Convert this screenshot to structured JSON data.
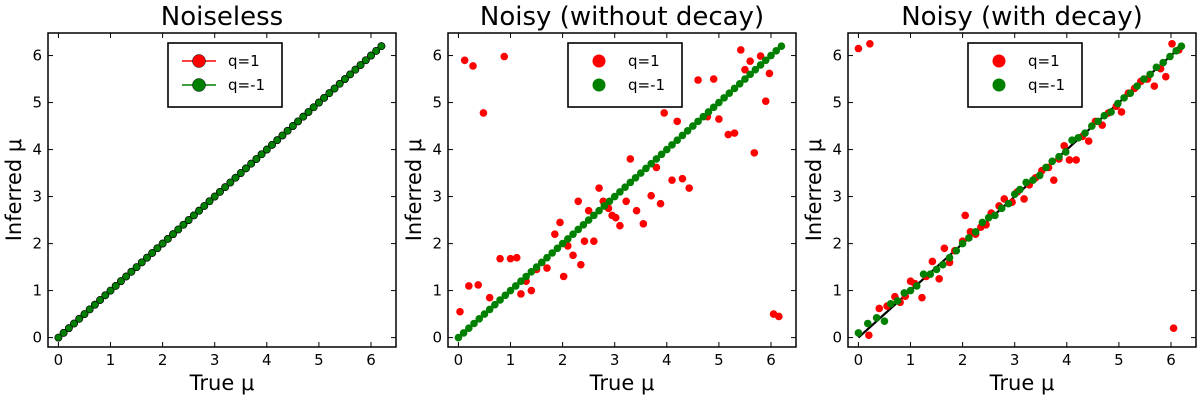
{
  "chart_data": [
    {
      "type": "scatter",
      "title": "Noiseless",
      "xlabel": "True μ",
      "ylabel": "Inferred μ",
      "xlim": [
        -0.2,
        6.48
      ],
      "ylim": [
        -0.2,
        6.48
      ],
      "xticks": [
        "0",
        "1",
        "2",
        "3",
        "4",
        "5",
        "6"
      ],
      "yticks": [
        "0",
        "1",
        "2",
        "3",
        "4",
        "5",
        "6"
      ],
      "legend_position": "top-center",
      "marker_style": "line-with-markers",
      "series": [
        {
          "name": "q=1",
          "color": "#ff0000",
          "x": [
            0.0,
            0.1,
            0.2,
            0.3,
            0.4,
            0.5,
            0.6,
            0.7,
            0.8,
            0.9,
            1.0,
            1.1,
            1.2,
            1.3,
            1.4,
            1.5,
            1.6,
            1.7,
            1.8,
            1.9,
            2.0,
            2.1,
            2.2,
            2.3,
            2.4,
            2.5,
            2.6,
            2.7,
            2.8,
            2.9,
            3.0,
            3.1,
            3.2,
            3.3,
            3.4,
            3.5,
            3.6,
            3.7,
            3.8,
            3.9,
            4.0,
            4.1,
            4.2,
            4.3,
            4.4,
            4.5,
            4.6,
            4.7,
            4.8,
            4.9,
            5.0,
            5.1,
            5.2,
            5.3,
            5.4,
            5.5,
            5.6,
            5.7,
            5.8,
            5.9,
            6.0,
            6.1,
            6.2
          ],
          "y": [
            0.0,
            0.1,
            0.2,
            0.3,
            0.4,
            0.5,
            0.6,
            0.7,
            0.8,
            0.9,
            1.0,
            1.1,
            1.2,
            1.3,
            1.4,
            1.5,
            1.6,
            1.7,
            1.8,
            1.9,
            2.0,
            2.1,
            2.2,
            2.3,
            2.4,
            2.5,
            2.6,
            2.7,
            2.8,
            2.9,
            3.0,
            3.1,
            3.2,
            3.3,
            3.4,
            3.5,
            3.6,
            3.7,
            3.8,
            3.9,
            4.0,
            4.1,
            4.2,
            4.3,
            4.4,
            4.5,
            4.6,
            4.7,
            4.8,
            4.9,
            5.0,
            5.1,
            5.2,
            5.3,
            5.4,
            5.5,
            5.6,
            5.7,
            5.8,
            5.9,
            6.0,
            6.1,
            6.2
          ]
        },
        {
          "name": "q=-1",
          "color": "#008000",
          "x": [
            0.0,
            0.1,
            0.2,
            0.3,
            0.4,
            0.5,
            0.6,
            0.7,
            0.8,
            0.9,
            1.0,
            1.1,
            1.2,
            1.3,
            1.4,
            1.5,
            1.6,
            1.7,
            1.8,
            1.9,
            2.0,
            2.1,
            2.2,
            2.3,
            2.4,
            2.5,
            2.6,
            2.7,
            2.8,
            2.9,
            3.0,
            3.1,
            3.2,
            3.3,
            3.4,
            3.5,
            3.6,
            3.7,
            3.8,
            3.9,
            4.0,
            4.1,
            4.2,
            4.3,
            4.4,
            4.5,
            4.6,
            4.7,
            4.8,
            4.9,
            5.0,
            5.1,
            5.2,
            5.3,
            5.4,
            5.5,
            5.6,
            5.7,
            5.8,
            5.9,
            6.0,
            6.1,
            6.2
          ],
          "y": [
            0.0,
            0.1,
            0.2,
            0.3,
            0.4,
            0.5,
            0.6,
            0.7,
            0.8,
            0.9,
            1.0,
            1.1,
            1.2,
            1.3,
            1.4,
            1.5,
            1.6,
            1.7,
            1.8,
            1.9,
            2.0,
            2.1,
            2.2,
            2.3,
            2.4,
            2.5,
            2.6,
            2.7,
            2.8,
            2.9,
            3.0,
            3.1,
            3.2,
            3.3,
            3.4,
            3.5,
            3.6,
            3.7,
            3.8,
            3.9,
            4.0,
            4.1,
            4.2,
            4.3,
            4.4,
            4.5,
            4.6,
            4.7,
            4.8,
            4.9,
            5.0,
            5.1,
            5.2,
            5.3,
            5.4,
            5.5,
            5.6,
            5.7,
            5.8,
            5.9,
            6.0,
            6.1,
            6.2
          ]
        }
      ],
      "reference_line": {
        "x": [
          0,
          6.2
        ],
        "y": [
          0,
          6.2
        ],
        "color": "#000000"
      }
    },
    {
      "type": "scatter",
      "title": "Noisy (without decay)",
      "xlabel": "True μ",
      "ylabel": "Inferred μ",
      "xlim": [
        -0.2,
        6.48
      ],
      "ylim": [
        -0.2,
        6.48
      ],
      "xticks": [
        "0",
        "1",
        "2",
        "3",
        "4",
        "5",
        "6"
      ],
      "yticks": [
        "0",
        "1",
        "2",
        "3",
        "4",
        "5",
        "6"
      ],
      "legend_position": "top-center",
      "marker_style": "markers",
      "series": [
        {
          "name": "q=1",
          "color": "#ff0000",
          "x": [
            0.03,
            0.12,
            0.2,
            0.28,
            0.38,
            0.48,
            0.6,
            0.8,
            0.88,
            1.0,
            1.12,
            1.2,
            1.3,
            1.4,
            1.5,
            1.6,
            1.7,
            1.85,
            1.95,
            2.02,
            2.1,
            2.2,
            2.3,
            2.35,
            2.42,
            2.5,
            2.6,
            2.7,
            2.78,
            2.88,
            2.95,
            3.02,
            3.1,
            3.22,
            3.3,
            3.42,
            3.55,
            3.7,
            3.8,
            3.88,
            3.95,
            4.1,
            4.2,
            4.3,
            4.43,
            4.6,
            4.78,
            4.9,
            5.0,
            5.18,
            5.3,
            5.42,
            5.5,
            5.6,
            5.68,
            5.8,
            5.9,
            5.97,
            6.05,
            6.15
          ],
          "y": [
            0.55,
            5.9,
            1.1,
            5.78,
            1.12,
            4.78,
            0.85,
            1.68,
            5.98,
            1.68,
            1.7,
            0.93,
            1.2,
            1.0,
            1.45,
            1.6,
            1.48,
            2.2,
            2.45,
            1.3,
            1.95,
            1.75,
            2.9,
            1.55,
            2.05,
            2.7,
            2.05,
            3.18,
            2.9,
            2.75,
            2.6,
            2.55,
            2.38,
            2.9,
            3.8,
            2.7,
            2.42,
            3.02,
            3.62,
            2.85,
            4.78,
            3.35,
            4.6,
            3.38,
            3.18,
            5.48,
            4.7,
            5.5,
            4.65,
            4.32,
            4.35,
            6.12,
            5.7,
            5.88,
            3.93,
            5.99,
            5.03,
            5.62,
            0.5,
            0.45
          ]
        },
        {
          "name": "q=-1",
          "color": "#008000",
          "x": [
            0.0,
            0.1,
            0.2,
            0.3,
            0.4,
            0.5,
            0.6,
            0.7,
            0.8,
            0.9,
            1.0,
            1.1,
            1.2,
            1.3,
            1.4,
            1.5,
            1.6,
            1.7,
            1.8,
            1.9,
            2.0,
            2.1,
            2.2,
            2.3,
            2.4,
            2.5,
            2.6,
            2.7,
            2.8,
            2.9,
            3.0,
            3.1,
            3.2,
            3.3,
            3.4,
            3.5,
            3.6,
            3.7,
            3.8,
            3.9,
            4.0,
            4.1,
            4.2,
            4.3,
            4.4,
            4.5,
            4.6,
            4.7,
            4.8,
            4.9,
            5.0,
            5.1,
            5.2,
            5.3,
            5.4,
            5.5,
            5.6,
            5.7,
            5.8,
            5.9,
            6.0,
            6.1,
            6.2
          ],
          "y": [
            0.0,
            0.1,
            0.2,
            0.3,
            0.4,
            0.5,
            0.6,
            0.7,
            0.8,
            0.9,
            1.0,
            1.1,
            1.2,
            1.3,
            1.4,
            1.5,
            1.6,
            1.7,
            1.8,
            1.9,
            2.0,
            2.1,
            2.2,
            2.3,
            2.4,
            2.5,
            2.6,
            2.7,
            2.8,
            2.9,
            3.0,
            3.1,
            3.2,
            3.3,
            3.4,
            3.5,
            3.6,
            3.7,
            3.8,
            3.9,
            4.0,
            4.1,
            4.2,
            4.3,
            4.4,
            4.5,
            4.6,
            4.7,
            4.8,
            4.9,
            5.0,
            5.1,
            5.2,
            5.3,
            5.4,
            5.5,
            5.6,
            5.7,
            5.8,
            5.9,
            6.0,
            6.1,
            6.2
          ]
        }
      ],
      "reference_line": {
        "x": [
          0,
          6.2
        ],
        "y": [
          0,
          6.2
        ],
        "color": "#000000"
      }
    },
    {
      "type": "scatter",
      "title": "Noisy (with decay)",
      "xlabel": "True μ",
      "ylabel": "Inferred μ",
      "xlim": [
        -0.2,
        6.48
      ],
      "ylim": [
        -0.2,
        6.48
      ],
      "xticks": [
        "0",
        "1",
        "2",
        "3",
        "4",
        "5",
        "6"
      ],
      "yticks": [
        "0",
        "1",
        "2",
        "3",
        "4",
        "5",
        "6"
      ],
      "legend_position": "top-center",
      "marker_style": "markers",
      "series": [
        {
          "name": "q=1",
          "color": "#ff0000",
          "x": [
            0.0,
            0.22,
            0.2,
            0.4,
            0.55,
            0.7,
            0.8,
            0.9,
            1.0,
            1.08,
            1.22,
            1.3,
            1.42,
            1.55,
            1.65,
            1.75,
            1.85,
            2.0,
            2.05,
            2.15,
            2.25,
            2.35,
            2.45,
            2.55,
            2.7,
            2.8,
            2.95,
            3.05,
            3.18,
            3.28,
            3.4,
            3.52,
            3.65,
            3.75,
            3.85,
            3.95,
            4.05,
            4.18,
            4.3,
            4.42,
            4.55,
            4.68,
            4.8,
            4.95,
            5.05,
            5.18,
            5.3,
            5.42,
            5.55,
            5.68,
            5.8,
            5.9,
            6.02,
            6.15,
            6.05
          ],
          "y": [
            6.15,
            6.25,
            0.05,
            0.62,
            0.67,
            0.87,
            0.75,
            0.88,
            1.2,
            1.15,
            0.85,
            1.3,
            1.62,
            1.25,
            1.9,
            1.6,
            1.85,
            2.05,
            2.6,
            2.25,
            2.2,
            2.35,
            2.4,
            2.65,
            2.8,
            2.95,
            2.88,
            3.1,
            2.95,
            3.25,
            3.4,
            3.55,
            3.62,
            3.35,
            3.8,
            4.08,
            3.78,
            3.78,
            4.28,
            4.18,
            4.6,
            4.52,
            4.78,
            4.92,
            4.8,
            5.2,
            5.3,
            5.45,
            5.5,
            5.35,
            5.72,
            5.55,
            6.25,
            6.12,
            0.2
          ]
        },
        {
          "name": "q=-1",
          "color": "#008000",
          "x": [
            0.0,
            0.18,
            0.35,
            0.5,
            0.62,
            0.75,
            0.88,
            1.0,
            1.12,
            1.25,
            1.38,
            1.5,
            1.62,
            1.75,
            1.88,
            2.0,
            2.12,
            2.25,
            2.38,
            2.5,
            2.62,
            2.75,
            2.88,
            3.0,
            3.1,
            3.22,
            3.35,
            3.48,
            3.6,
            3.72,
            3.85,
            3.98,
            4.1,
            4.22,
            4.35,
            4.48,
            4.6,
            4.72,
            4.85,
            4.98,
            5.1,
            5.22,
            5.35,
            5.48,
            5.6,
            5.72,
            5.85,
            5.98,
            6.1,
            6.2
          ],
          "y": [
            0.1,
            0.3,
            0.42,
            0.35,
            0.72,
            0.78,
            0.95,
            1.0,
            1.1,
            1.35,
            1.35,
            1.45,
            1.55,
            1.7,
            1.85,
            2.0,
            2.12,
            2.25,
            2.45,
            2.55,
            2.6,
            2.75,
            2.85,
            3.05,
            3.15,
            3.3,
            3.35,
            3.45,
            3.62,
            3.75,
            3.85,
            3.95,
            4.2,
            4.25,
            4.35,
            4.5,
            4.6,
            4.72,
            4.8,
            4.98,
            5.1,
            5.2,
            5.35,
            5.5,
            5.6,
            5.75,
            5.85,
            5.98,
            6.1,
            6.2
          ]
        }
      ],
      "reference_line": {
        "x": [
          0,
          6.2
        ],
        "y": [
          0,
          6.2
        ],
        "color": "#000000"
      }
    }
  ]
}
